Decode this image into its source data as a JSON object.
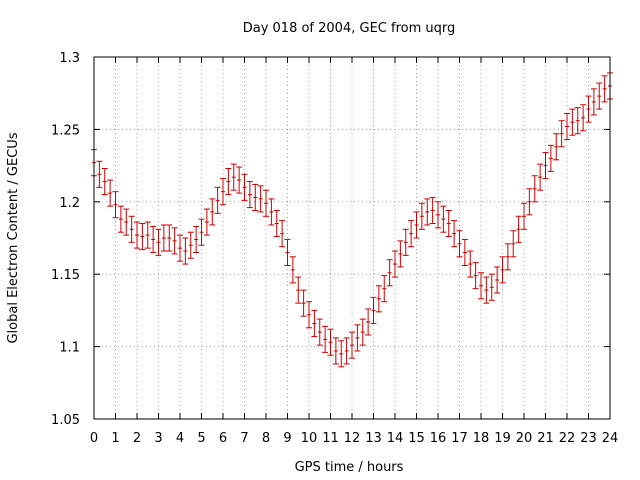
{
  "chart_data": {
    "type": "scatter",
    "title": "Day 018 of 2004, GEC from uqrg",
    "xlabel": "GPS time / hours",
    "ylabel": "Global Electron Content / GECUs",
    "xlim": [
      0,
      24
    ],
    "ylim": [
      1.05,
      1.3
    ],
    "x_ticks": [
      "0",
      "1",
      "2",
      "3",
      "4",
      "5",
      "6",
      "7",
      "8",
      "9",
      "10",
      "11",
      "12",
      "13",
      "14",
      "15",
      "16",
      "17",
      "18",
      "19",
      "20",
      "21",
      "22",
      "23",
      "24"
    ],
    "y_ticks": [
      "1.05",
      "1.1",
      "1.15",
      "1.2",
      "1.25",
      "1.3"
    ],
    "grid": true,
    "series": [
      {
        "name": "GEC",
        "color": "#cc0000",
        "error": 0.009,
        "x": [
          0.0,
          0.25,
          0.5,
          0.75,
          1.0,
          1.25,
          1.5,
          1.75,
          2.0,
          2.25,
          2.5,
          2.75,
          3.0,
          3.25,
          3.5,
          3.75,
          4.0,
          4.25,
          4.5,
          4.75,
          5.0,
          5.25,
          5.5,
          5.75,
          6.0,
          6.25,
          6.5,
          6.75,
          7.0,
          7.25,
          7.5,
          7.75,
          8.0,
          8.25,
          8.5,
          8.75,
          9.0,
          9.25,
          9.5,
          9.75,
          10.0,
          10.25,
          10.5,
          10.75,
          11.0,
          11.25,
          11.5,
          11.75,
          12.0,
          12.25,
          12.5,
          12.75,
          13.0,
          13.25,
          13.5,
          13.75,
          14.0,
          14.25,
          14.5,
          14.75,
          15.0,
          15.25,
          15.5,
          15.75,
          16.0,
          16.25,
          16.5,
          16.75,
          17.0,
          17.25,
          17.5,
          17.75,
          18.0,
          18.25,
          18.5,
          18.75,
          19.0,
          19.25,
          19.5,
          19.75,
          20.0,
          20.25,
          20.5,
          20.75,
          21.0,
          21.25,
          21.5,
          21.75,
          22.0,
          22.25,
          22.5,
          22.75,
          23.0,
          23.25,
          23.5,
          23.75,
          24.0
        ],
        "y": [
          1.227,
          1.219,
          1.214,
          1.206,
          1.198,
          1.188,
          1.186,
          1.181,
          1.177,
          1.176,
          1.177,
          1.174,
          1.172,
          1.175,
          1.175,
          1.173,
          1.168,
          1.166,
          1.17,
          1.174,
          1.179,
          1.186,
          1.193,
          1.201,
          1.207,
          1.214,
          1.217,
          1.215,
          1.21,
          1.205,
          1.203,
          1.202,
          1.199,
          1.193,
          1.185,
          1.178,
          1.165,
          1.153,
          1.139,
          1.13,
          1.122,
          1.116,
          1.11,
          1.105,
          1.103,
          1.097,
          1.095,
          1.097,
          1.101,
          1.106,
          1.11,
          1.117,
          1.125,
          1.133,
          1.14,
          1.151,
          1.157,
          1.164,
          1.172,
          1.178,
          1.184,
          1.19,
          1.193,
          1.194,
          1.191,
          1.188,
          1.185,
          1.178,
          1.171,
          1.165,
          1.157,
          1.149,
          1.142,
          1.139,
          1.141,
          1.146,
          1.153,
          1.162,
          1.171,
          1.181,
          1.19,
          1.2,
          1.209,
          1.217,
          1.225,
          1.23,
          1.238,
          1.247,
          1.252,
          1.255,
          1.256,
          1.258,
          1.264,
          1.269,
          1.273,
          1.278,
          1.28
        ]
      }
    ]
  }
}
